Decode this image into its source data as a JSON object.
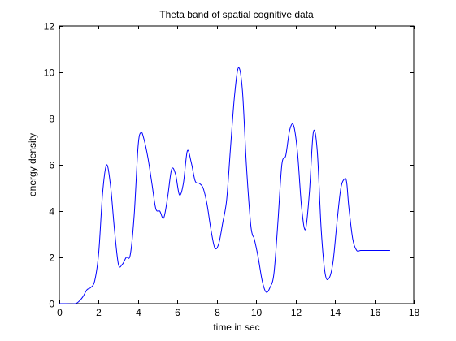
{
  "chart_data": {
    "type": "line",
    "title": "Theta band of spatial cognitive data",
    "xlabel": "time in sec",
    "ylabel": "energy density",
    "xlim": [
      0,
      18
    ],
    "ylim": [
      0,
      12
    ],
    "xticks": [
      "0",
      "2",
      "4",
      "6",
      "8",
      "10",
      "12",
      "14",
      "16",
      "18"
    ],
    "yticks": [
      "0",
      "2",
      "4",
      "6",
      "8",
      "10",
      "12"
    ],
    "grid": false,
    "line_color": "#0000ff",
    "series": [
      {
        "x": [
          0,
          0.3,
          0.8,
          1.0,
          1.2,
          1.4,
          1.6,
          1.8,
          2.0,
          2.2,
          2.4,
          2.6,
          2.8,
          3.0,
          3.2,
          3.4,
          3.6,
          3.8,
          4.0,
          4.15,
          4.3,
          4.5,
          4.7,
          4.9,
          5.1,
          5.3,
          5.5,
          5.7,
          5.9,
          6.1,
          6.3,
          6.5,
          6.7,
          6.9,
          7.1,
          7.3,
          7.5,
          7.7,
          7.9,
          8.1,
          8.3,
          8.5,
          8.7,
          8.9,
          9.1,
          9.3,
          9.5,
          9.7,
          9.8,
          9.9,
          10.1,
          10.3,
          10.5,
          10.7,
          10.9,
          11.1,
          11.3,
          11.5,
          11.7,
          11.9,
          12.1,
          12.3,
          12.5,
          12.7,
          12.9,
          13.1,
          13.3,
          13.5,
          13.7,
          13.9,
          14.1,
          14.3,
          14.5,
          14.6,
          14.7,
          14.9,
          15.1,
          15.3,
          15.5,
          15.7,
          15.9,
          16.1,
          16.3,
          16.5,
          16.7,
          16.8
        ],
        "values": [
          0.0,
          0.0,
          0.0,
          0.1,
          0.3,
          0.6,
          0.7,
          1.0,
          2.2,
          4.8,
          6.0,
          5.1,
          3.2,
          1.7,
          1.7,
          2.0,
          2.1,
          3.8,
          6.8,
          7.4,
          7.1,
          6.3,
          5.2,
          4.1,
          4.0,
          3.7,
          4.6,
          5.8,
          5.6,
          4.7,
          5.2,
          6.6,
          6.1,
          5.3,
          5.2,
          5.0,
          4.3,
          3.2,
          2.4,
          2.6,
          3.5,
          4.5,
          6.8,
          9.0,
          10.2,
          9.2,
          6.0,
          3.6,
          3.0,
          2.8,
          2.0,
          1.0,
          0.5,
          0.7,
          1.3,
          3.5,
          6.0,
          6.4,
          7.5,
          7.7,
          6.5,
          4.2,
          3.2,
          4.8,
          7.4,
          6.6,
          3.2,
          1.3,
          1.1,
          1.8,
          3.5,
          5.0,
          5.4,
          5.2,
          4.2,
          2.8,
          2.3,
          2.3,
          2.3,
          2.3,
          2.3,
          2.3,
          2.3,
          2.3,
          2.3,
          2.3
        ]
      }
    ]
  }
}
